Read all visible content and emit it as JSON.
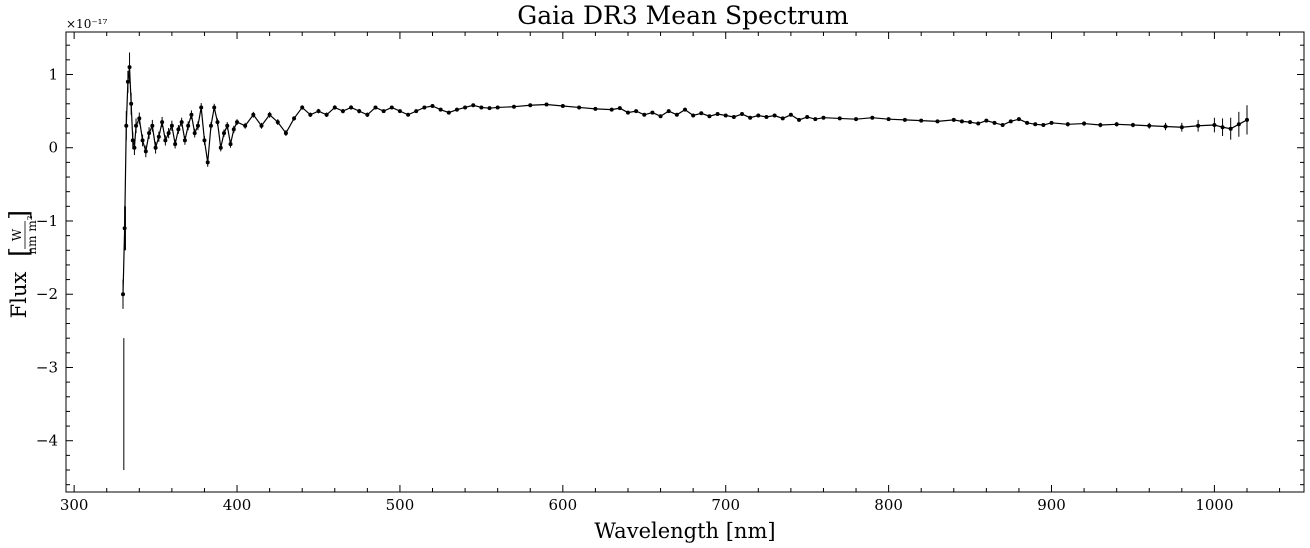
{
  "chart_data": {
    "type": "line",
    "title": "Gaia DR3 Mean Spectrum",
    "xlabel": "Wavelength [nm]",
    "ylabel_prefix": "Flux",
    "ylabel_unit_numerator": "W",
    "ylabel_unit_denominator": "nm m²",
    "y_exponent_label": "×10⁻¹⁷",
    "xlim": [
      295,
      1055
    ],
    "ylim": [
      -4.7,
      1.58
    ],
    "x_ticks": [
      300,
      400,
      500,
      600,
      700,
      800,
      900,
      1000
    ],
    "y_ticks": [
      1,
      0,
      -1,
      -2,
      -3,
      -4
    ],
    "x_tick_labels": [
      "300",
      "400",
      "500",
      "600",
      "700",
      "800",
      "900",
      "1000"
    ],
    "y_tick_labels": [
      "1",
      "0",
      "−1",
      "−2",
      "−3",
      "−4"
    ],
    "grid": false,
    "series": [
      {
        "color": "#000000",
        "x": [
          330,
          331,
          332,
          333,
          334,
          335,
          336,
          337,
          338,
          340,
          342,
          344,
          346,
          348,
          350,
          352,
          354,
          356,
          358,
          360,
          362,
          364,
          366,
          368,
          370,
          372,
          374,
          376,
          378,
          380,
          382,
          384,
          386,
          388,
          390,
          392,
          394,
          396,
          398,
          400,
          405,
          410,
          415,
          420,
          425,
          430,
          435,
          440,
          445,
          450,
          455,
          460,
          465,
          470,
          475,
          480,
          485,
          490,
          495,
          500,
          505,
          510,
          515,
          520,
          525,
          530,
          535,
          540,
          545,
          550,
          555,
          560,
          570,
          580,
          590,
          600,
          610,
          620,
          630,
          635,
          640,
          645,
          650,
          655,
          660,
          665,
          670,
          675,
          680,
          685,
          690,
          695,
          700,
          705,
          710,
          715,
          720,
          725,
          730,
          735,
          740,
          745,
          750,
          755,
          760,
          770,
          780,
          790,
          800,
          810,
          820,
          830,
          840,
          845,
          850,
          855,
          860,
          865,
          870,
          875,
          880,
          885,
          890,
          895,
          900,
          910,
          920,
          930,
          940,
          950,
          960,
          970,
          980,
          990,
          1000,
          1005,
          1010,
          1015,
          1020
        ],
        "y": [
          -2.0,
          -1.1,
          0.3,
          0.9,
          1.1,
          0.6,
          0.1,
          0.0,
          0.3,
          0.4,
          0.1,
          -0.05,
          0.2,
          0.3,
          0.0,
          0.15,
          0.35,
          0.1,
          0.2,
          0.3,
          0.05,
          0.25,
          0.35,
          0.1,
          0.3,
          0.45,
          0.2,
          0.3,
          0.55,
          0.1,
          -0.2,
          0.3,
          0.55,
          0.35,
          0.0,
          0.2,
          0.3,
          0.05,
          0.25,
          0.35,
          0.3,
          0.45,
          0.3,
          0.45,
          0.35,
          0.2,
          0.4,
          0.55,
          0.45,
          0.5,
          0.45,
          0.55,
          0.5,
          0.55,
          0.5,
          0.45,
          0.55,
          0.5,
          0.55,
          0.5,
          0.45,
          0.5,
          0.55,
          0.57,
          0.52,
          0.48,
          0.52,
          0.55,
          0.58,
          0.55,
          0.54,
          0.55,
          0.56,
          0.58,
          0.59,
          0.57,
          0.55,
          0.53,
          0.52,
          0.54,
          0.48,
          0.5,
          0.45,
          0.48,
          0.43,
          0.5,
          0.45,
          0.52,
          0.44,
          0.47,
          0.43,
          0.46,
          0.44,
          0.42,
          0.46,
          0.41,
          0.44,
          0.42,
          0.44,
          0.4,
          0.45,
          0.38,
          0.42,
          0.39,
          0.41,
          0.4,
          0.39,
          0.41,
          0.39,
          0.38,
          0.37,
          0.36,
          0.38,
          0.36,
          0.35,
          0.33,
          0.37,
          0.34,
          0.31,
          0.36,
          0.39,
          0.34,
          0.32,
          0.31,
          0.34,
          0.32,
          0.33,
          0.31,
          0.32,
          0.31,
          0.3,
          0.29,
          0.28,
          0.3,
          0.31,
          0.28,
          0.26,
          0.32,
          0.38
        ],
        "err": [
          0.2,
          0.3,
          0.2,
          0.15,
          0.2,
          0.15,
          0.12,
          0.1,
          0.1,
          0.08,
          0.08,
          0.08,
          0.08,
          0.08,
          0.08,
          0.07,
          0.07,
          0.07,
          0.07,
          0.07,
          0.06,
          0.06,
          0.06,
          0.06,
          0.06,
          0.06,
          0.06,
          0.06,
          0.06,
          0.06,
          0.06,
          0.05,
          0.05,
          0.05,
          0.05,
          0.05,
          0.05,
          0.05,
          0.05,
          0.04,
          0.04,
          0.04,
          0.04,
          0.04,
          0.04,
          0.04,
          0.03,
          0.03,
          0.03,
          0.03,
          0.03,
          0.03,
          0.03,
          0.03,
          0.03,
          0.03,
          0.02,
          0.02,
          0.02,
          0.02,
          0.02,
          0.02,
          0.02,
          0.02,
          0.02,
          0.02,
          0.02,
          0.02,
          0.02,
          0.02,
          0.02,
          0.02,
          0.02,
          0.02,
          0.02,
          0.02,
          0.02,
          0.02,
          0.02,
          0.02,
          0.02,
          0.02,
          0.02,
          0.02,
          0.02,
          0.02,
          0.02,
          0.02,
          0.02,
          0.02,
          0.02,
          0.02,
          0.02,
          0.02,
          0.02,
          0.02,
          0.02,
          0.02,
          0.02,
          0.02,
          0.02,
          0.02,
          0.02,
          0.02,
          0.02,
          0.02,
          0.02,
          0.02,
          0.02,
          0.02,
          0.02,
          0.02,
          0.02,
          0.02,
          0.02,
          0.02,
          0.02,
          0.02,
          0.02,
          0.02,
          0.02,
          0.02,
          0.02,
          0.02,
          0.02,
          0.03,
          0.03,
          0.03,
          0.03,
          0.03,
          0.04,
          0.05,
          0.06,
          0.08,
          0.1,
          0.12,
          0.15,
          0.17,
          0.2
        ]
      }
    ],
    "outliers": [
      {
        "x": 330.5,
        "y_low": -4.4,
        "y_high": -2.6
      },
      {
        "x": 331.5,
        "y_low": -1.4,
        "y_high": -0.8
      }
    ]
  }
}
